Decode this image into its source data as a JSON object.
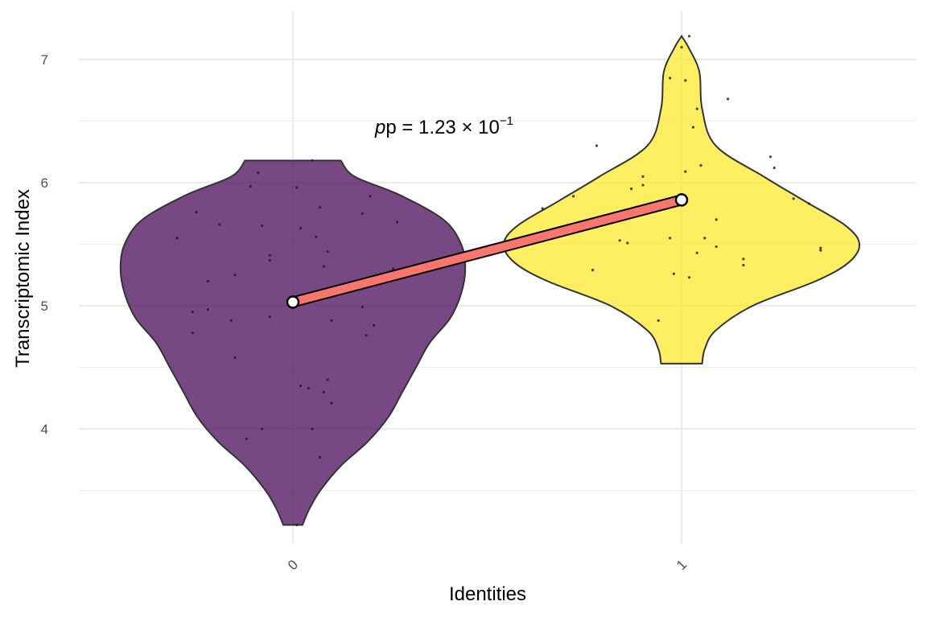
{
  "chart_data": {
    "type": "violin",
    "xlabel": "Identities",
    "ylabel": "Transcriptomic Index",
    "ylim": [
      3.05,
      7.4
    ],
    "yticks": [
      4,
      5,
      6,
      7
    ],
    "categories": [
      "0",
      "1"
    ],
    "groups": [
      {
        "category": "0",
        "color": "#440154",
        "range": [
          3.22,
          6.18
        ],
        "mean": 5.03,
        "density": [
          [
            3.22,
            0.07
          ],
          [
            3.35,
            0.12
          ],
          [
            3.5,
            0.2
          ],
          [
            3.7,
            0.35
          ],
          [
            3.9,
            0.55
          ],
          [
            4.1,
            0.7
          ],
          [
            4.3,
            0.8
          ],
          [
            4.5,
            0.9
          ],
          [
            4.7,
            1.0
          ],
          [
            4.9,
            1.15
          ],
          [
            5.1,
            1.23
          ],
          [
            5.3,
            1.26
          ],
          [
            5.5,
            1.23
          ],
          [
            5.7,
            1.1
          ],
          [
            5.9,
            0.78
          ],
          [
            6.05,
            0.45
          ],
          [
            6.18,
            0.35
          ]
        ],
        "points": [
          [
            5.55,
            -0.3
          ],
          [
            5.2,
            -0.22
          ],
          [
            4.95,
            -0.26
          ],
          [
            4.78,
            -0.26
          ],
          [
            4.97,
            -0.22
          ],
          [
            5.76,
            -0.25
          ],
          [
            5.66,
            -0.19
          ],
          [
            5.25,
            -0.15
          ],
          [
            4.88,
            -0.16
          ],
          [
            4.58,
            -0.15
          ],
          [
            3.92,
            -0.12
          ],
          [
            4.0,
            -0.08
          ],
          [
            6.08,
            -0.09
          ],
          [
            5.97,
            -0.11
          ],
          [
            5.65,
            -0.08
          ],
          [
            5.41,
            -0.06
          ],
          [
            5.37,
            -0.06
          ],
          [
            4.91,
            -0.06
          ],
          [
            3.22,
            0.01
          ],
          [
            5.96,
            0.01
          ],
          [
            6.18,
            0.05
          ],
          [
            5.63,
            0.02
          ],
          [
            4.35,
            0.02
          ],
          [
            4.33,
            0.04
          ],
          [
            4.0,
            0.05
          ],
          [
            3.77,
            0.07
          ],
          [
            5.8,
            0.07
          ],
          [
            5.56,
            0.06
          ],
          [
            5.32,
            0.08
          ],
          [
            5.44,
            0.09
          ],
          [
            4.3,
            0.08
          ],
          [
            4.21,
            0.1
          ],
          [
            4.4,
            0.09
          ],
          [
            4.88,
            0.1
          ],
          [
            5.75,
            0.18
          ],
          [
            4.99,
            0.18
          ],
          [
            4.76,
            0.19
          ],
          [
            4.84,
            0.21
          ],
          [
            5.89,
            0.2
          ],
          [
            5.68,
            0.27
          ],
          [
            5.3,
            0.26
          ]
        ]
      },
      {
        "category": "1",
        "color": "#FDE725",
        "range": [
          4.53,
          7.19
        ],
        "mean": 5.86,
        "density": [
          [
            4.53,
            0.15
          ],
          [
            4.65,
            0.17
          ],
          [
            4.8,
            0.25
          ],
          [
            5.0,
            0.52
          ],
          [
            5.2,
            0.98
          ],
          [
            5.35,
            1.22
          ],
          [
            5.5,
            1.3
          ],
          [
            5.65,
            1.2
          ],
          [
            5.85,
            0.9
          ],
          [
            6.05,
            0.6
          ],
          [
            6.3,
            0.25
          ],
          [
            6.6,
            0.15
          ],
          [
            6.9,
            0.13
          ],
          [
            7.1,
            0.05
          ],
          [
            7.19,
            0.0
          ]
        ],
        "points": [
          [
            5.79,
            -0.36
          ],
          [
            5.89,
            -0.28
          ],
          [
            6.3,
            -0.22
          ],
          [
            5.29,
            -0.23
          ],
          [
            5.64,
            -0.22
          ],
          [
            5.53,
            -0.16
          ],
          [
            5.51,
            -0.14
          ],
          [
            5.95,
            -0.13
          ],
          [
            6.05,
            -0.1
          ],
          [
            5.98,
            -0.1
          ],
          [
            4.88,
            -0.06
          ],
          [
            5.55,
            -0.03
          ],
          [
            6.85,
            -0.03
          ],
          [
            5.26,
            -0.02
          ],
          [
            7.1,
            0.0
          ],
          [
            6.09,
            0.01
          ],
          [
            6.83,
            0.01
          ],
          [
            5.23,
            0.02
          ],
          [
            7.19,
            0.02
          ],
          [
            6.45,
            0.03
          ],
          [
            6.6,
            0.04
          ],
          [
            5.43,
            0.04
          ],
          [
            6.14,
            0.05
          ],
          [
            5.55,
            0.06
          ],
          [
            5.48,
            0.09
          ],
          [
            5.7,
            0.09
          ],
          [
            6.68,
            0.12
          ],
          [
            5.38,
            0.16
          ],
          [
            5.33,
            0.16
          ],
          [
            6.21,
            0.23
          ],
          [
            6.12,
            0.24
          ],
          [
            5.87,
            0.29
          ],
          [
            5.83,
            0.33
          ],
          [
            5.47,
            0.36
          ],
          [
            5.45,
            0.36
          ]
        ]
      }
    ],
    "annotation": {
      "base": "p = 1.23 × 10",
      "exponent": "−1"
    },
    "mean_line_color": "#F8766D"
  }
}
